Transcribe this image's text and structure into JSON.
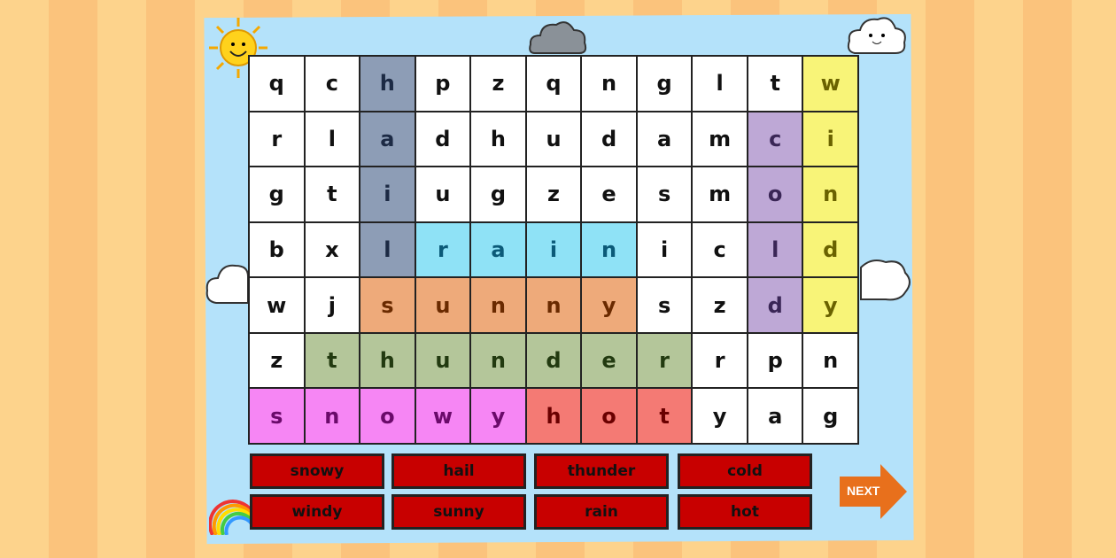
{
  "grid": [
    "qchpzqngltw",
    "rladhudamci",
    "gtiugzesmon",
    "bxlrainicld",
    "wjsunnyszdy",
    "zthunderrpn",
    "snowyhotyag"
  ],
  "found_words": [
    {
      "word": "hail",
      "color": "#8d9db6",
      "text": "#1c2a44",
      "cells": [
        [
          0,
          2
        ],
        [
          1,
          2
        ],
        [
          2,
          2
        ],
        [
          3,
          2
        ]
      ]
    },
    {
      "word": "rain",
      "color": "#8fe2f6",
      "text": "#0b5a78",
      "cells": [
        [
          3,
          3
        ],
        [
          3,
          4
        ],
        [
          3,
          5
        ],
        [
          3,
          6
        ]
      ]
    },
    {
      "word": "sunny",
      "color": "#eeaa7a",
      "text": "#6a2a00",
      "cells": [
        [
          4,
          2
        ],
        [
          4,
          3
        ],
        [
          4,
          4
        ],
        [
          4,
          5
        ],
        [
          4,
          6
        ]
      ]
    },
    {
      "word": "thunder",
      "color": "#b4c69a",
      "text": "#223a10",
      "cells": [
        [
          5,
          1
        ],
        [
          5,
          2
        ],
        [
          5,
          3
        ],
        [
          5,
          4
        ],
        [
          5,
          5
        ],
        [
          5,
          6
        ],
        [
          5,
          7
        ]
      ]
    },
    {
      "word": "snowy",
      "color": "#f686f4",
      "text": "#6a0a6a",
      "cells": [
        [
          6,
          0
        ],
        [
          6,
          1
        ],
        [
          6,
          2
        ],
        [
          6,
          3
        ],
        [
          6,
          4
        ]
      ]
    },
    {
      "word": "hot",
      "color": "#f47a74",
      "text": "#6a0000",
      "cells": [
        [
          6,
          5
        ],
        [
          6,
          6
        ],
        [
          6,
          7
        ]
      ]
    },
    {
      "word": "cold",
      "color": "#bea8d6",
      "text": "#3a2656",
      "cells": [
        [
          1,
          9
        ],
        [
          2,
          9
        ],
        [
          3,
          9
        ],
        [
          4,
          9
        ]
      ]
    },
    {
      "word": "windy",
      "color": "#f8f478",
      "text": "#6a6200",
      "cells": [
        [
          0,
          10
        ],
        [
          1,
          10
        ],
        [
          2,
          10
        ],
        [
          3,
          10
        ],
        [
          4,
          10
        ]
      ]
    }
  ],
  "word_buttons": [
    "snowy",
    "hail",
    "thunder",
    "cold",
    "windy",
    "sunny",
    "rain",
    "hot"
  ],
  "button_color": "#c80000",
  "next_label": "NEXT",
  "next_color": "#e8701c"
}
